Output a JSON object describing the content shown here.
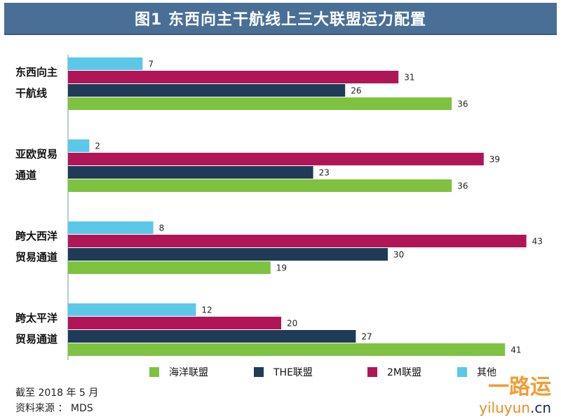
{
  "title": "图1  东西向主干航线上三大联盟运力配置",
  "chart_data": {
    "type": "bar",
    "orientation": "horizontal",
    "categories": [
      [
        "东西向主",
        "干航线"
      ],
      [
        "亚欧贸易",
        "通道"
      ],
      [
        "跨大西洋",
        "贸易通道"
      ],
      [
        "跨太平洋",
        "贸易通道"
      ]
    ],
    "series": [
      {
        "name": "其他",
        "color": "#5bc8e8",
        "values": [
          7,
          2,
          8,
          12
        ]
      },
      {
        "name": "2M联盟",
        "color": "#b01557",
        "values": [
          31,
          39,
          43,
          20
        ]
      },
      {
        "name": "THE联盟",
        "color": "#1f3b57",
        "values": [
          26,
          23,
          30,
          27
        ]
      },
      {
        "name": "海洋联盟",
        "color": "#7fc241",
        "values": [
          36,
          36,
          19,
          41
        ]
      }
    ],
    "legend_order": [
      "海洋联盟",
      "THE联盟",
      "2M联盟",
      "其他"
    ],
    "legend_position": "bottom",
    "xlim": [
      0,
      45
    ],
    "grid": false
  },
  "notes": {
    "date": "截至 2018 年 5 月",
    "source": "资料来源 ： MDS"
  },
  "watermark": {
    "brand": "一路运",
    "url_main": "yiluyun",
    "url_tld": ".cn"
  }
}
